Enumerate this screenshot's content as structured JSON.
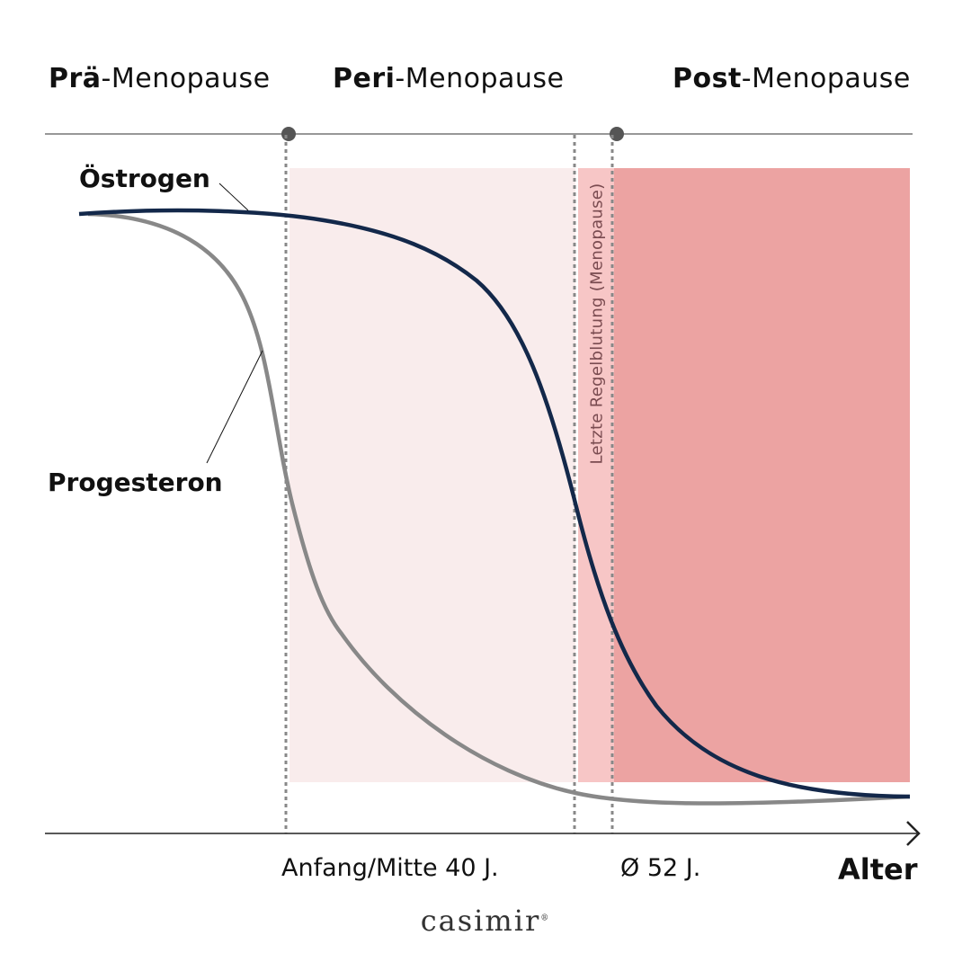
{
  "phases": [
    {
      "bold": "Prä",
      "rest": "-Menopause"
    },
    {
      "bold": "Peri",
      "rest": "-Menopause"
    },
    {
      "bold": "Post",
      "rest": "-Menopause"
    }
  ],
  "curves": {
    "estrogen": "Östrogen",
    "progesterone": "Progesteron"
  },
  "menopause_marker": "Letzte Regelblutung (Menopause)",
  "x_ticks": [
    "Anfang/Mitte 40 J.",
    "Ø 52 J."
  ],
  "x_axis_label": "Alter",
  "logo": {
    "text": "casimir",
    "mark": "®"
  },
  "colors": {
    "estrogen": "#13284a",
    "progesterone": "#888888",
    "peri_zone": "#f9ecec",
    "menopause_zone": "#f7c6c6",
    "post_zone": "#eca3a2"
  }
}
